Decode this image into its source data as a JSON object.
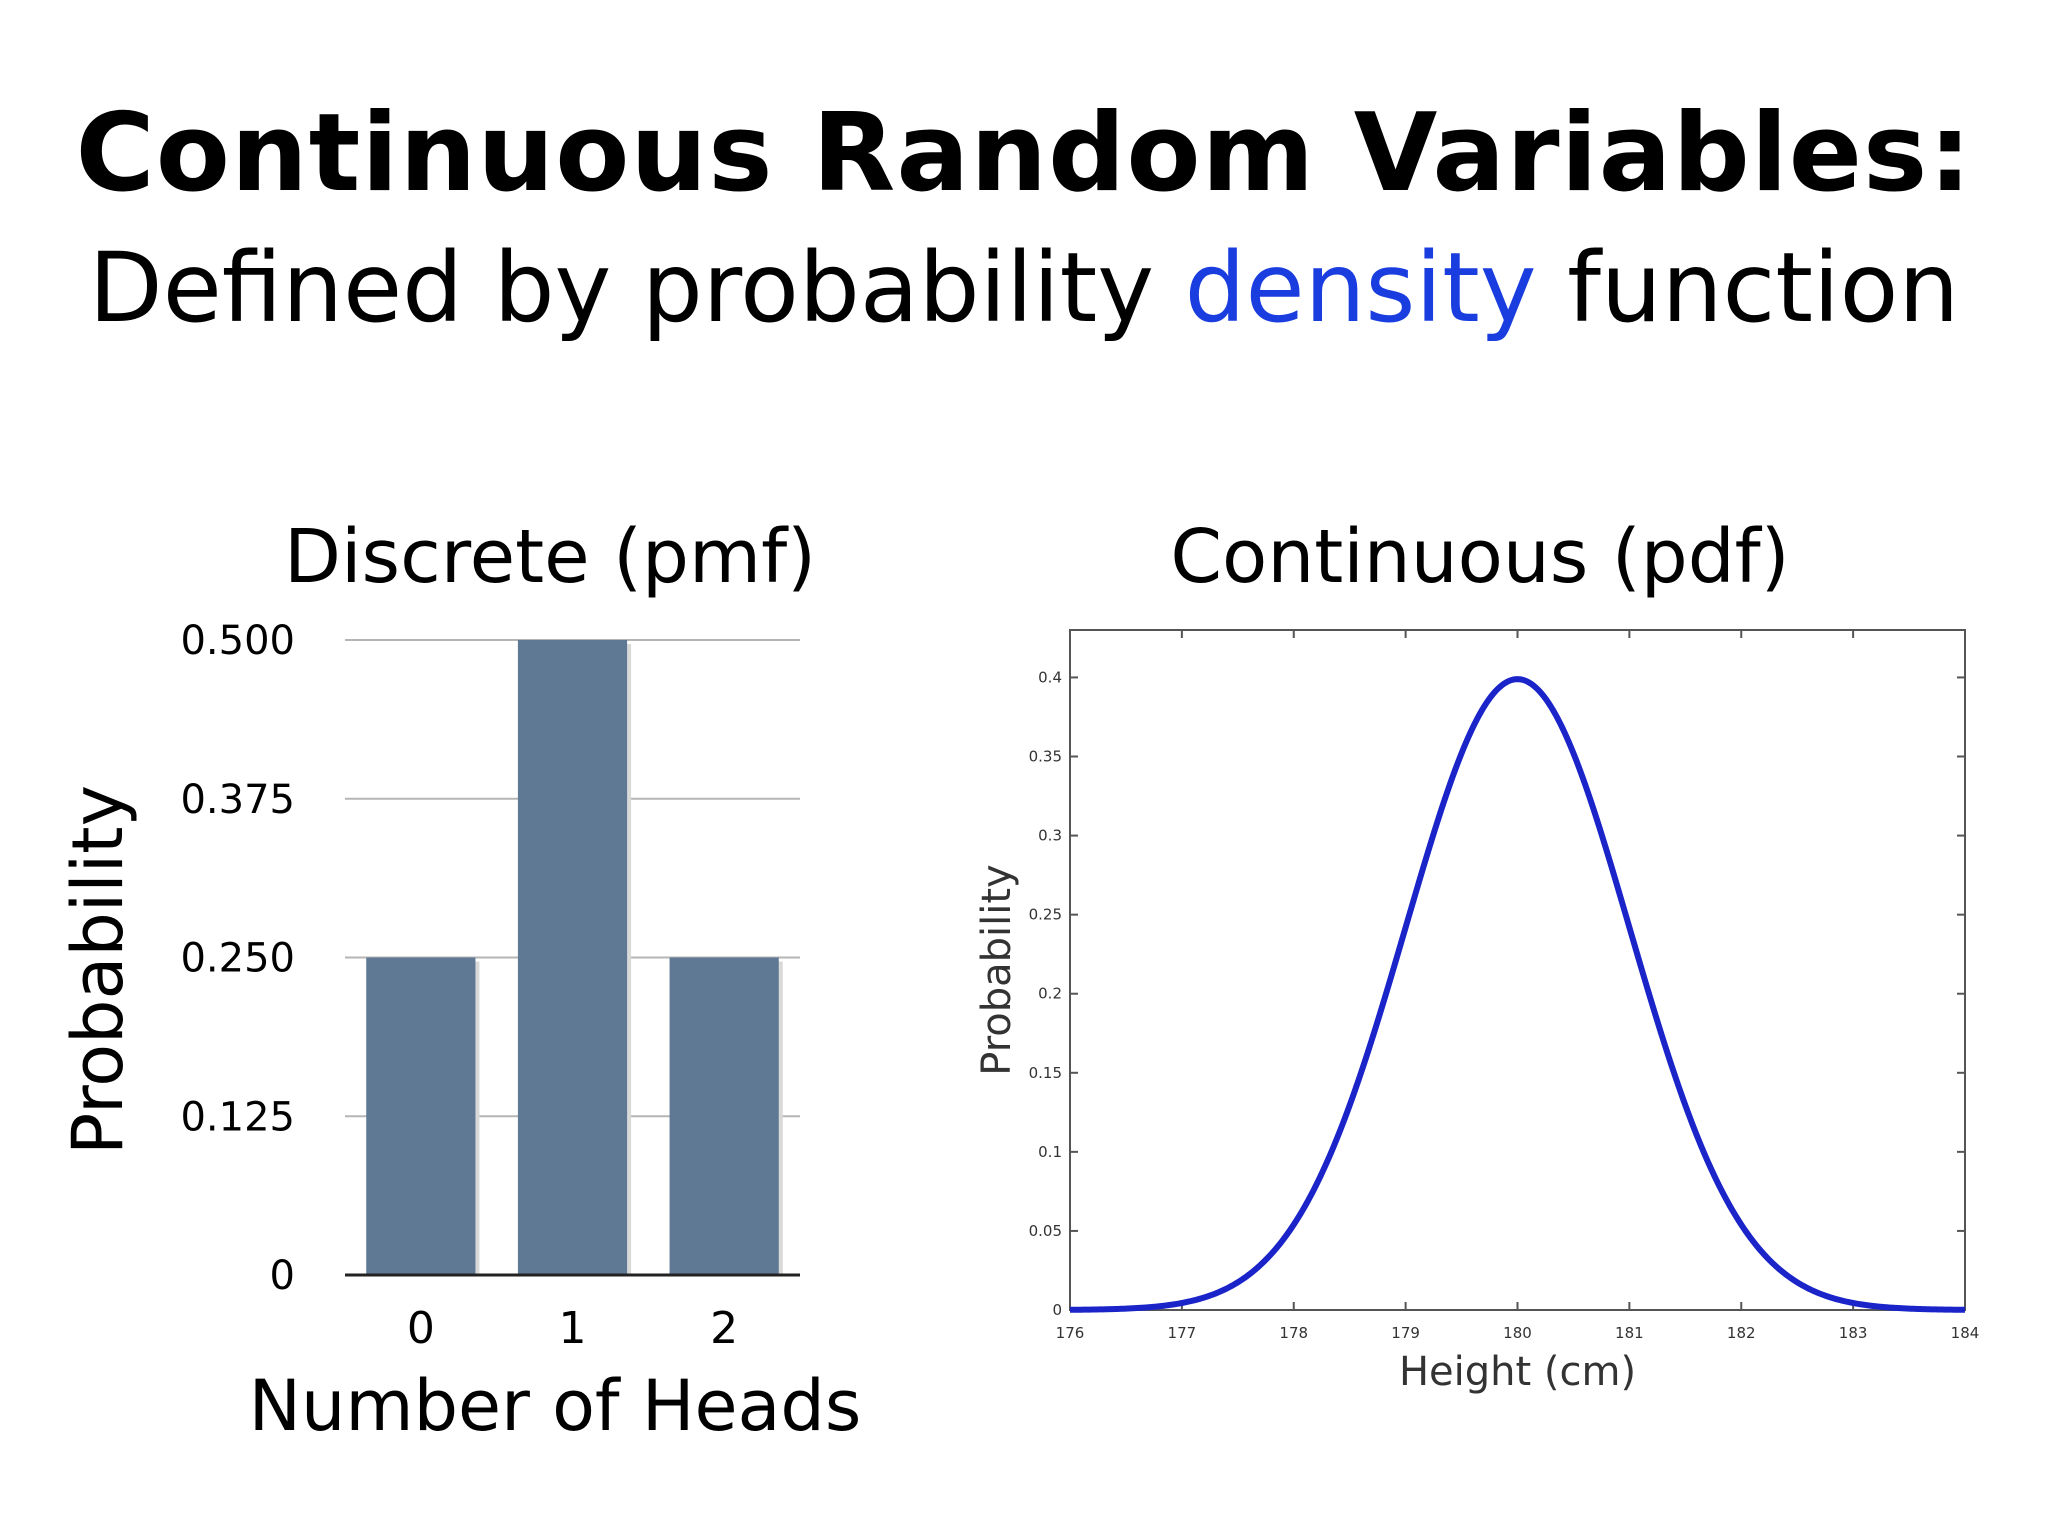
{
  "slide": {
    "title": "Continuous Random Variables:",
    "subtitle_pre": "Defined by probability ",
    "subtitle_accent": "density",
    "subtitle_post": " function",
    "accent_color": "#1a3de0"
  },
  "chart_data": [
    {
      "type": "bar",
      "title": "Discrete (pmf)",
      "xlabel": "Number of Heads",
      "ylabel": "Probability",
      "categories": [
        "0",
        "1",
        "2"
      ],
      "values": [
        0.25,
        0.5,
        0.25
      ],
      "ylim": [
        0,
        0.5
      ],
      "yticks": [
        "0",
        "0.125",
        "0.250",
        "0.375",
        "0.500"
      ],
      "grid": true,
      "bar_color": "#5f7893"
    },
    {
      "type": "line",
      "title": "Continuous (pdf)",
      "xlabel": "Height (cm)",
      "ylabel": "Probability",
      "distribution": "normal",
      "mean": 180,
      "std": 1,
      "xlim": [
        176,
        184
      ],
      "ylim": [
        0,
        0.43
      ],
      "xticks": [
        "176",
        "177",
        "178",
        "179",
        "180",
        "181",
        "182",
        "183",
        "184"
      ],
      "yticks": [
        "0",
        "0.05",
        "0.1",
        "0.15",
        "0.2",
        "0.25",
        "0.3",
        "0.35",
        "0.4"
      ],
      "grid": false,
      "line_color": "#1a24c8",
      "series": [
        {
          "x": [
            176,
            176.5,
            177,
            177.5,
            178,
            178.5,
            179,
            179.5,
            180,
            180.5,
            181,
            181.5,
            182,
            182.5,
            183,
            183.5,
            184
          ],
          "y": [
            0.0001,
            0.0009,
            0.0044,
            0.0175,
            0.054,
            0.1295,
            0.242,
            0.3521,
            0.3989,
            0.3521,
            0.242,
            0.1295,
            0.054,
            0.0175,
            0.0044,
            0.0009,
            0.0001
          ]
        }
      ]
    }
  ]
}
